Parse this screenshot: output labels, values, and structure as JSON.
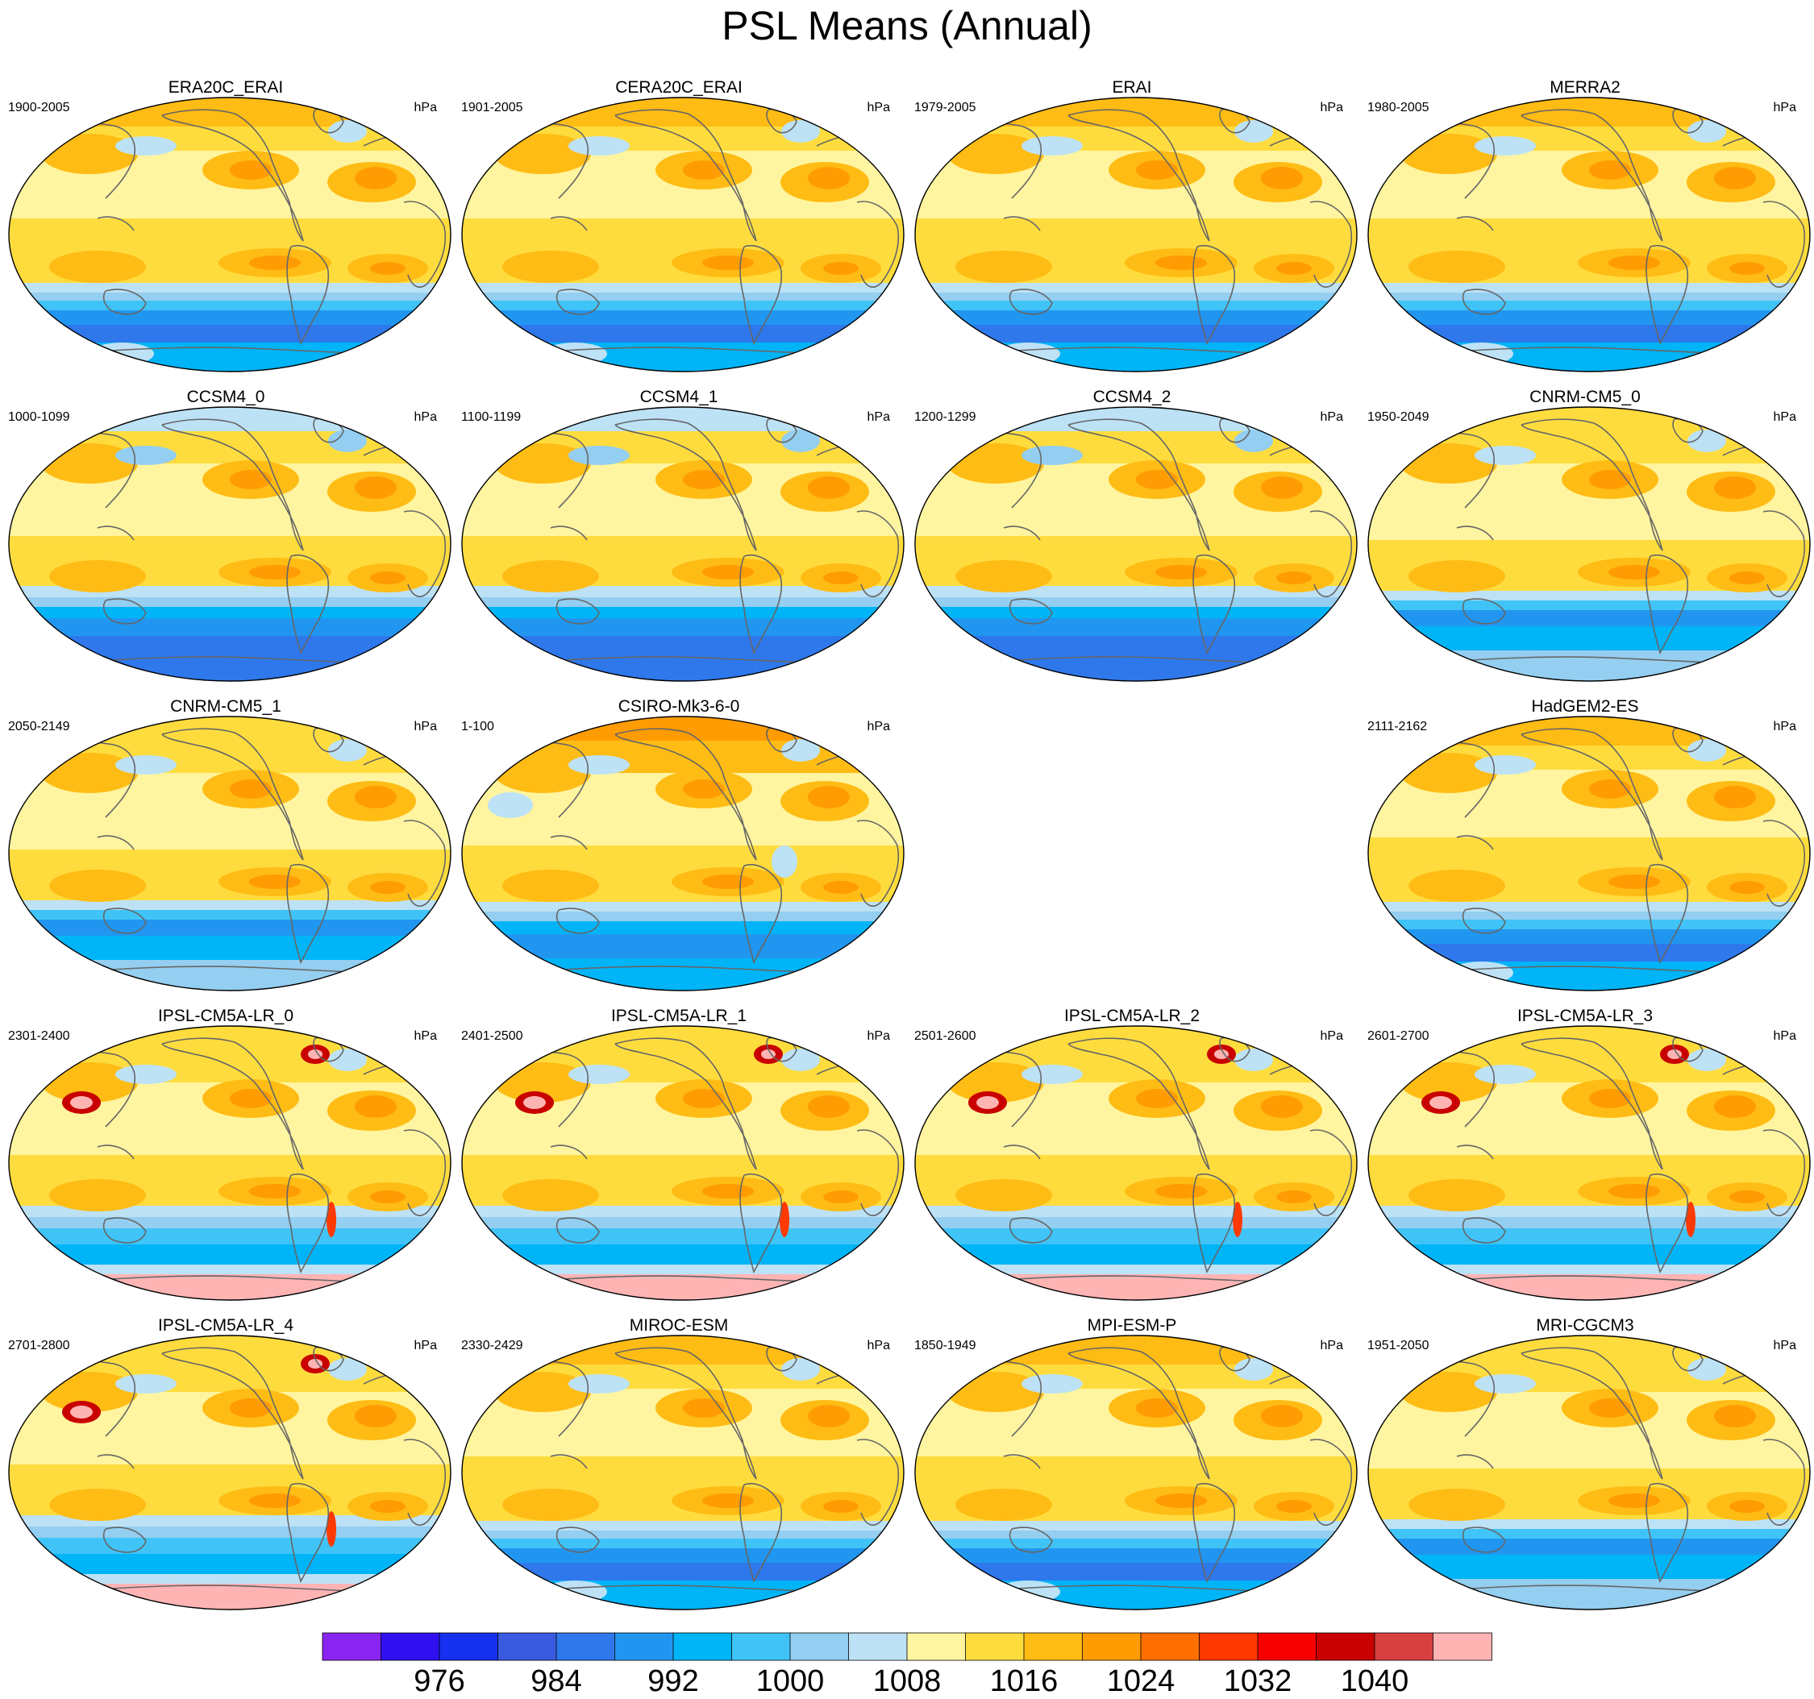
{
  "title": "PSL Means (Annual)",
  "units": "hPa",
  "panels": [
    {
      "name": "ERA20C_ERAI",
      "years": "1900-2005",
      "row": 0,
      "col": 0,
      "style": "reanalysis"
    },
    {
      "name": "CERA20C_ERAI",
      "years": "1901-2005",
      "row": 0,
      "col": 1,
      "style": "reanalysis"
    },
    {
      "name": "ERAI",
      "years": "1979-2005",
      "row": 0,
      "col": 2,
      "style": "reanalysis"
    },
    {
      "name": "MERRA2",
      "years": "1980-2005",
      "row": 0,
      "col": 3,
      "style": "reanalysis"
    },
    {
      "name": "CCSM4_0",
      "years": "1000-1099",
      "row": 1,
      "col": 0,
      "style": "ccsm"
    },
    {
      "name": "CCSM4_1",
      "years": "1100-1199",
      "row": 1,
      "col": 1,
      "style": "ccsm"
    },
    {
      "name": "CCSM4_2",
      "years": "1200-1299",
      "row": 1,
      "col": 2,
      "style": "ccsm"
    },
    {
      "name": "CNRM-CM5_0",
      "years": "1950-2049",
      "row": 1,
      "col": 3,
      "style": "cnrm"
    },
    {
      "name": "CNRM-CM5_1",
      "years": "2050-2149",
      "row": 2,
      "col": 0,
      "style": "cnrm"
    },
    {
      "name": "CSIRO-Mk3-6-0",
      "years": "1-100",
      "row": 2,
      "col": 1,
      "style": "csiro"
    },
    {
      "name": "HadGEM2-ES",
      "years": "2111-2162",
      "row": 2,
      "col": 3,
      "style": "reanalysis"
    },
    {
      "name": "IPSL-CM5A-LR_0",
      "years": "2301-2400",
      "row": 3,
      "col": 0,
      "style": "ipsl"
    },
    {
      "name": "IPSL-CM5A-LR_1",
      "years": "2401-2500",
      "row": 3,
      "col": 1,
      "style": "ipsl"
    },
    {
      "name": "IPSL-CM5A-LR_2",
      "years": "2501-2600",
      "row": 3,
      "col": 2,
      "style": "ipsl"
    },
    {
      "name": "IPSL-CM5A-LR_3",
      "years": "2601-2700",
      "row": 3,
      "col": 3,
      "style": "ipsl"
    },
    {
      "name": "IPSL-CM5A-LR_4",
      "years": "2701-2800",
      "row": 4,
      "col": 0,
      "style": "ipsl"
    },
    {
      "name": "MIROC-ESM",
      "years": "2330-2429",
      "row": 4,
      "col": 1,
      "style": "reanalysis"
    },
    {
      "name": "MPI-ESM-P",
      "years": "1850-1949",
      "row": 4,
      "col": 2,
      "style": "reanalysis"
    },
    {
      "name": "MRI-CGCM3",
      "years": "1951-2050",
      "row": 4,
      "col": 3,
      "style": "cnrm"
    }
  ],
  "colorbar": {
    "colors": [
      "#8a24f0",
      "#3010f0",
      "#1630f0",
      "#3a5ae0",
      "#2e78ec",
      "#2196f0",
      "#00b4f8",
      "#40c4f8",
      "#94cef0",
      "#bde2f6",
      "#fff5a0",
      "#ffdc3e",
      "#ffbc14",
      "#ff9c04",
      "#ff6e00",
      "#ff3a00",
      "#f80000",
      "#c80000",
      "#d84040",
      "#ffb4b4"
    ],
    "labels": [
      "976",
      "984",
      "992",
      "1000",
      "1008",
      "1016",
      "1024",
      "1032",
      "1040"
    ]
  },
  "land_color": "#666666"
}
